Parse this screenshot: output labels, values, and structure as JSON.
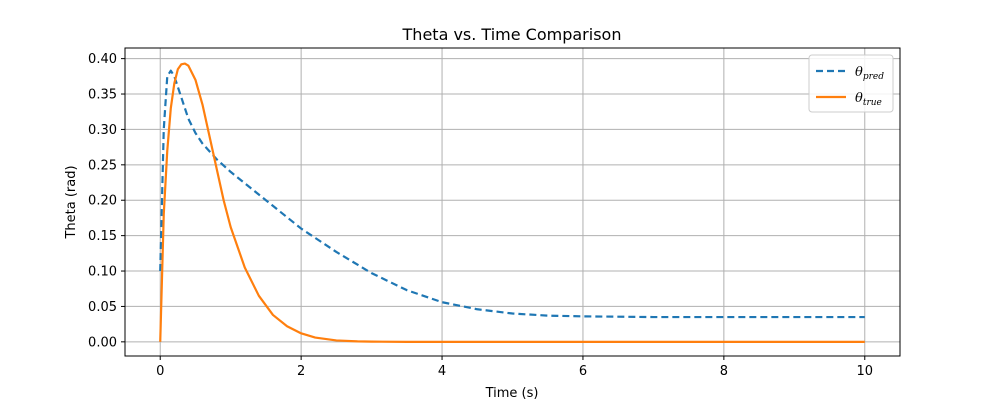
{
  "chart_data": {
    "type": "line",
    "title": "Theta vs. Time Comparison",
    "xlabel": "Time (s)",
    "ylabel": "Theta (rad)",
    "xlim": [
      -0.5,
      10.5
    ],
    "ylim": [
      -0.02,
      0.415
    ],
    "xticks": [
      0,
      2,
      4,
      6,
      8,
      10
    ],
    "xtick_labels": [
      "0",
      "2",
      "4",
      "6",
      "8",
      "10"
    ],
    "yticks": [
      0.0,
      0.05,
      0.1,
      0.15,
      0.2,
      0.25,
      0.3,
      0.35,
      0.4
    ],
    "ytick_labels": [
      "0.00",
      "0.05",
      "0.10",
      "0.15",
      "0.20",
      "0.25",
      "0.30",
      "0.35",
      "0.40"
    ],
    "grid": true,
    "legend_position": "top-right",
    "series": [
      {
        "name": "θ",
        "name_subscript": "pred",
        "color": "#1f77b4",
        "style": "dashed",
        "x": [
          0,
          0.05,
          0.1,
          0.15,
          0.2,
          0.3,
          0.4,
          0.5,
          0.6,
          0.8,
          1.0,
          1.2,
          1.5,
          2.0,
          2.5,
          3.0,
          3.5,
          4.0,
          4.5,
          5.0,
          5.5,
          6.0,
          7.0,
          8.0,
          9.0,
          10.0
        ],
        "y": [
          0.1,
          0.3,
          0.375,
          0.383,
          0.375,
          0.345,
          0.315,
          0.295,
          0.28,
          0.258,
          0.24,
          0.224,
          0.2,
          0.16,
          0.127,
          0.097,
          0.073,
          0.056,
          0.046,
          0.04,
          0.037,
          0.036,
          0.035,
          0.035,
          0.035,
          0.035
        ]
      },
      {
        "name": "θ",
        "name_subscript": "true",
        "color": "#ff7f0e",
        "style": "solid",
        "x": [
          0,
          0.05,
          0.1,
          0.15,
          0.2,
          0.25,
          0.3,
          0.35,
          0.4,
          0.5,
          0.6,
          0.7,
          0.8,
          0.9,
          1.0,
          1.2,
          1.4,
          1.6,
          1.8,
          2.0,
          2.2,
          2.5,
          2.8,
          3.0,
          3.5,
          4.0,
          5.0,
          6.0,
          8.0,
          10.0
        ],
        "y": [
          0.0,
          0.18,
          0.27,
          0.33,
          0.365,
          0.385,
          0.392,
          0.393,
          0.39,
          0.37,
          0.335,
          0.29,
          0.245,
          0.2,
          0.162,
          0.105,
          0.065,
          0.038,
          0.022,
          0.012,
          0.006,
          0.002,
          0.0007,
          0.0003,
          0.0,
          0.0,
          0.0,
          0.0,
          0.0,
          0.0
        ]
      }
    ]
  }
}
